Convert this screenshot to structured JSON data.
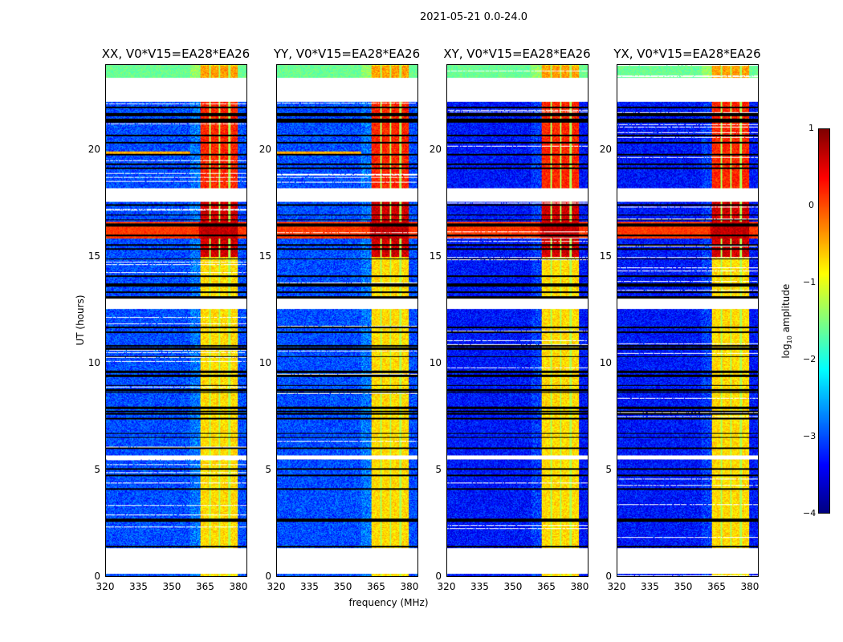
{
  "chart_data": {
    "type": "heatmap",
    "title": "2021-05-21 0.0-24.0",
    "xlabel": "frequency (MHz)",
    "ylabel": "UT (hours)",
    "xlim": [
      320,
      384
    ],
    "ylim": [
      0,
      24
    ],
    "xticks": [
      "320",
      "335",
      "350",
      "365",
      "380"
    ],
    "xtick_values": [
      320,
      335,
      350,
      365,
      380
    ],
    "yticks": [
      "0",
      "5",
      "10",
      "15",
      "20"
    ],
    "ytick_values": [
      0,
      5,
      10,
      15,
      20
    ],
    "panels": [
      {
        "title": "XX, V0*V15=EA28*EA26"
      },
      {
        "title": "YY, V0*V15=EA28*EA26"
      },
      {
        "title": "XY, V0*V15=EA28*EA26"
      },
      {
        "title": "YX, V0*V15=EA28*EA26"
      }
    ],
    "colorbar": {
      "label": "log10 amplitude",
      "label_main": "log",
      "label_sub": "10",
      "label_rest": " amplitude",
      "range": [
        -4,
        1
      ],
      "ticks": [
        "1",
        "0",
        "−1",
        "−2",
        "−3",
        "−4"
      ],
      "tick_values": [
        1,
        0,
        -1,
        -2,
        -3,
        -4
      ],
      "colormap": "jet"
    },
    "model": {
      "background_log_amp": -3.0,
      "rfi_band_mhz": [
        363,
        380
      ],
      "rfi_gaps_mhz": [
        367.2,
        371.5,
        376
      ],
      "flagged_hours": [
        [
          0.12,
          1.35
        ],
        [
          5.5,
          5.7
        ],
        [
          12.55,
          13.05
        ],
        [
          17.6,
          18.25
        ],
        [
          22.3,
          23.4
        ]
      ],
      "strong_row_hours": [
        15.85,
        16.65
      ],
      "rfi_levels": [
        {
          "hours": [
            18.2,
            22.3
          ],
          "value": 0.2
        },
        {
          "hours": [
            15.0,
            17.6
          ],
          "value": 0.6
        },
        {
          "hours": [
            1.35,
            23.4
          ],
          "value": -0.7
        },
        {
          "hours": [
            23.4,
            24
          ],
          "value": -0.4
        }
      ]
    }
  }
}
